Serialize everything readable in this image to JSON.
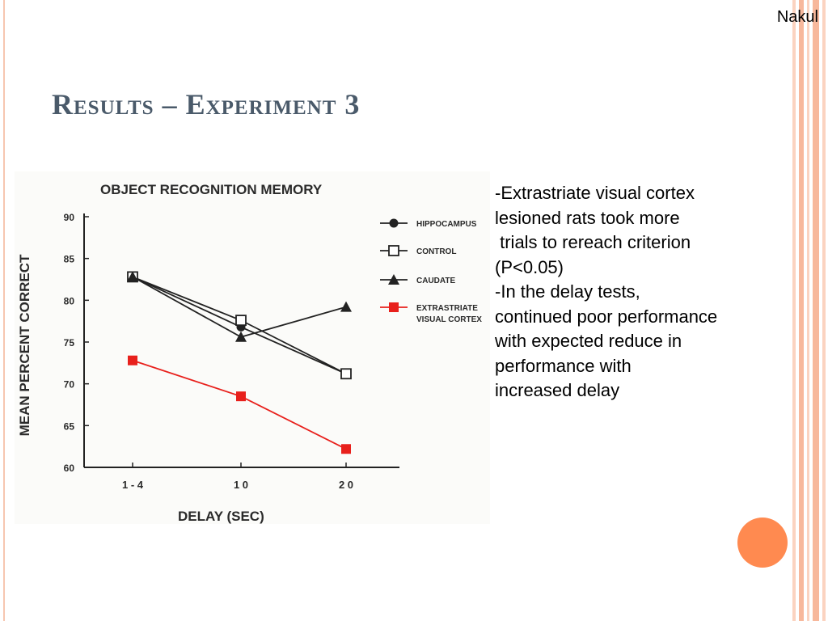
{
  "slide": {
    "author": "Nakul",
    "title": "Results – Experiment 3",
    "notes": [
      "-Extrastriate visual cortex",
      "lesioned rats took more",
      " trials to rereach criterion",
      "(P<0.05)",
      "-In the delay tests,",
      "continued poor performance",
      "with expected reduce in",
      "performance with",
      "increased delay"
    ],
    "colors": {
      "title": "#4a5a6a",
      "accent": "#ff8a50",
      "series_red": "#e8201c"
    }
  },
  "chart_data": {
    "type": "line",
    "title": "OBJECT RECOGNITION MEMORY",
    "xlabel": "DELAY (SEC)",
    "ylabel": "MEAN PERCENT CORRECT",
    "categories": [
      "1 - 4",
      "1 0",
      "2 0"
    ],
    "ylim": [
      60,
      90
    ],
    "yticks": [
      90,
      85,
      80,
      75,
      70,
      65,
      60
    ],
    "legend_position": "top-right",
    "series": [
      {
        "name": "HIPPOCAMPUS",
        "marker": "filled-circle",
        "color": "#222222",
        "values": [
          82.8,
          76.8,
          71.2
        ]
      },
      {
        "name": "CONTROL",
        "marker": "open-square",
        "color": "#222222",
        "values": [
          82.8,
          77.6,
          71.2
        ]
      },
      {
        "name": "CAUDATE",
        "marker": "filled-triangle",
        "color": "#222222",
        "values": [
          82.8,
          75.6,
          79.2
        ]
      },
      {
        "name": "EXTRASTRIATE\nVISUAL CORTEX",
        "marker": "filled-square",
        "color": "#e8201c",
        "values": [
          72.8,
          68.5,
          62.2
        ]
      }
    ]
  }
}
